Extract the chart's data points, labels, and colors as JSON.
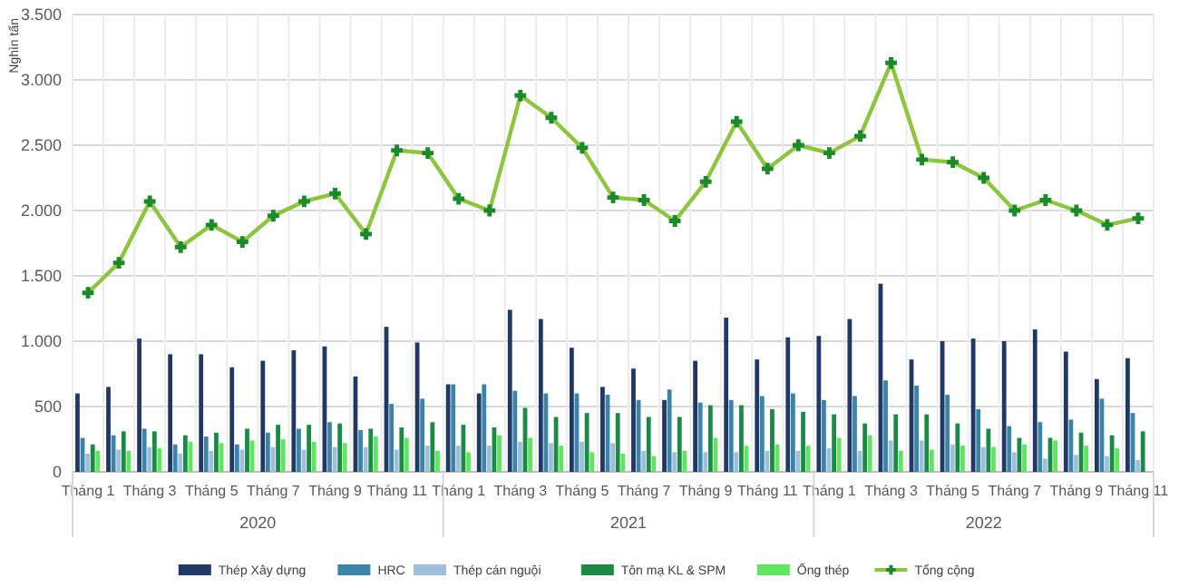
{
  "chart_data": {
    "type": "bar",
    "ylabel": "Nghìn tấn",
    "categories": [
      "Tháng 1",
      null,
      "Tháng 3",
      null,
      "Tháng 5",
      null,
      "Tháng 7",
      null,
      "Tháng 9",
      null,
      "Tháng 11",
      null,
      "Tháng 1",
      null,
      "Tháng 3",
      null,
      "Tháng 5",
      null,
      "Tháng 7",
      null,
      "Tháng 9",
      null,
      "Tháng 11",
      null,
      "Tháng 1",
      null,
      "Tháng 3",
      null,
      "Tháng 5",
      null,
      "Tháng 7",
      null,
      "Tháng 9",
      null,
      "Tháng 11"
    ],
    "annotations": [
      "2020",
      "2021",
      "2022"
    ],
    "ylim": [
      0,
      3500
    ],
    "yticks": [
      0,
      {
        "value": 500,
        "label": "500"
      },
      {
        "value": 1000,
        "label": "1.000"
      },
      {
        "value": 1500,
        "label": "1.500"
      },
      {
        "value": 2000,
        "label": "2.000"
      },
      {
        "value": 2500,
        "label": "2.500"
      },
      {
        "value": 3000,
        "label": "3.000"
      },
      {
        "value": 3500,
        "label": "3.500"
      }
    ],
    "grid": true,
    "legend": "bottom",
    "series": [
      {
        "name": "Thép Xây dựng",
        "color": "#1f3864",
        "values": [
          600,
          650,
          1020,
          900,
          900,
          800,
          850,
          930,
          960,
          730,
          1110,
          990,
          670,
          600,
          1240,
          1170,
          950,
          650,
          790,
          550,
          850,
          1180,
          860,
          1030,
          1040,
          1170,
          1440,
          860,
          1000,
          1020,
          1000,
          1090,
          920,
          710,
          870
        ]
      },
      {
        "name": "HRC",
        "color": "#3a84a8",
        "values": [
          260,
          280,
          330,
          210,
          270,
          210,
          300,
          330,
          380,
          320,
          520,
          560,
          670,
          670,
          620,
          600,
          600,
          590,
          550,
          630,
          530,
          550,
          580,
          600,
          550,
          580,
          700,
          660,
          590,
          480,
          350,
          380,
          400,
          560,
          450
        ]
      },
      {
        "name": "Thép cán nguội",
        "color": "#9dbfdc",
        "values": [
          140,
          170,
          190,
          140,
          160,
          170,
          190,
          170,
          190,
          190,
          170,
          200,
          200,
          200,
          230,
          220,
          230,
          220,
          160,
          150,
          150,
          150,
          160,
          160,
          180,
          160,
          240,
          240,
          210,
          190,
          150,
          100,
          130,
          120,
          90
        ]
      },
      {
        "name": "Tôn mạ KL & SPM",
        "color": "#1a8a45",
        "values": [
          210,
          310,
          310,
          280,
          300,
          330,
          360,
          360,
          370,
          330,
          340,
          380,
          360,
          340,
          490,
          420,
          450,
          450,
          420,
          420,
          510,
          510,
          480,
          460,
          440,
          370,
          440,
          440,
          370,
          330,
          260,
          260,
          300,
          280,
          310
        ]
      },
      {
        "name": "Ống thép",
        "color": "#5ee65e",
        "values": [
          160,
          160,
          180,
          230,
          220,
          240,
          250,
          230,
          220,
          270,
          260,
          160,
          150,
          280,
          260,
          200,
          150,
          140,
          120,
          160,
          260,
          200,
          210,
          200,
          260,
          280,
          160,
          170,
          200,
          190,
          210,
          240,
          200,
          180,
          null
        ]
      },
      {
        "name": "Tổng cộng",
        "type": "line",
        "color": "#8cc63f",
        "marker": "cross",
        "values": [
          1370,
          1600,
          2070,
          1720,
          1890,
          1760,
          1960,
          2070,
          2130,
          1820,
          2460,
          2440,
          2090,
          2000,
          2880,
          2710,
          2480,
          2100,
          2080,
          1920,
          2220,
          2680,
          2320,
          2500,
          2440,
          2570,
          3130,
          2390,
          2370,
          2250,
          2000,
          2080,
          2000,
          1890,
          1940
        ]
      }
    ]
  }
}
